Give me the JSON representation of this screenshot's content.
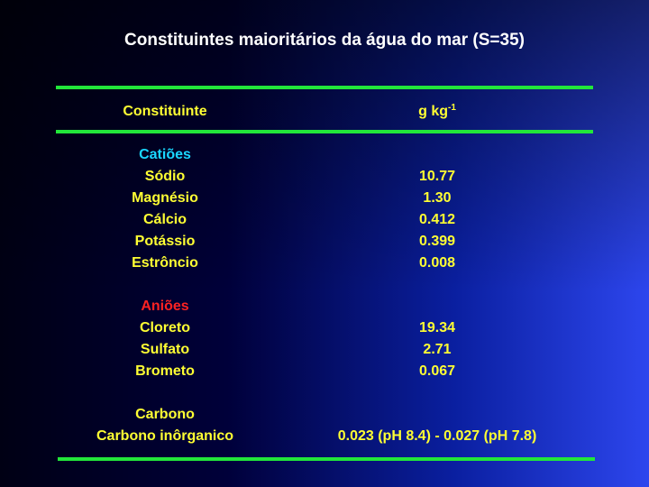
{
  "title": "Constituintes maioritários da água do mar (S=35)",
  "header": {
    "constituent": "Constituinte",
    "unit_base": "g kg",
    "unit_exp": "-1"
  },
  "cations": {
    "heading": "Catiões",
    "rows": [
      {
        "name": "Sódio",
        "value": "10.77"
      },
      {
        "name": "Magnésio",
        "value": "1.30"
      },
      {
        "name": "Cálcio",
        "value": "0.412"
      },
      {
        "name": "Potássio",
        "value": "0.399"
      },
      {
        "name": "Estrôncio",
        "value": "0.008"
      }
    ]
  },
  "anions": {
    "heading": "Aniões",
    "rows": [
      {
        "name": "Cloreto",
        "value": "19.34"
      },
      {
        "name": "Sulfato",
        "value": "2.71"
      },
      {
        "name": "Brometo",
        "value": "0.067"
      }
    ]
  },
  "carbon": {
    "heading": "Carbono",
    "row": {
      "name": "Carbono inôrganico",
      "value": "0.023 (pH 8.4) - 0.027 (pH 7.8)"
    }
  },
  "colors": {
    "rule": "#22e63a",
    "text": "#ffff33",
    "cations_heading": "#1ad7ff",
    "anions_heading": "#ff2222",
    "title": "#ffffff"
  }
}
